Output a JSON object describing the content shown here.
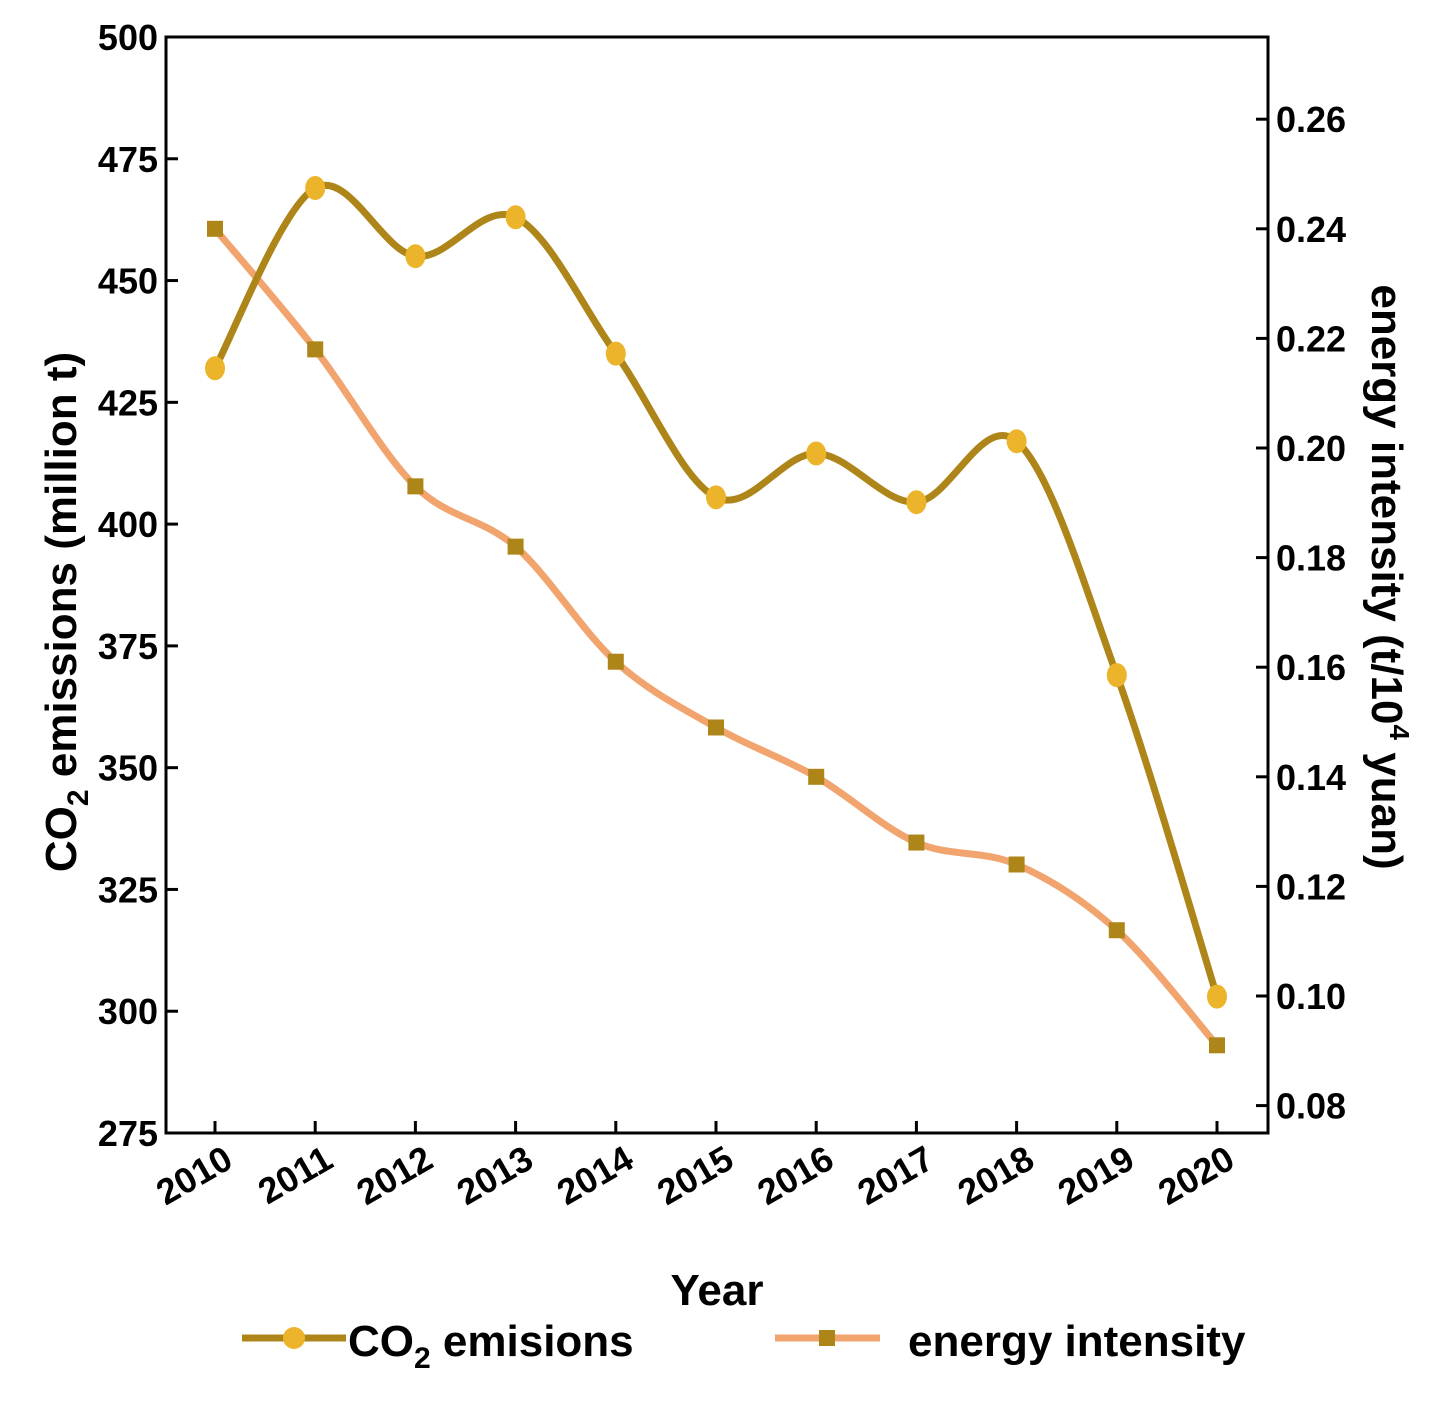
{
  "chart_data": {
    "type": "line",
    "x_label": "Year",
    "categories": [
      "2010",
      "2011",
      "2012",
      "2013",
      "2014",
      "2015",
      "2016",
      "2017",
      "2018",
      "2019",
      "2020"
    ],
    "y_left": {
      "label_prefix": "CO",
      "label_sub": "2",
      "label_suffix": " emissions (million t)",
      "range": [
        275,
        500
      ],
      "ticks": [
        "275",
        "300",
        "325",
        "350",
        "375",
        "400",
        "425",
        "450",
        "475",
        "500"
      ]
    },
    "y_right": {
      "label_prefix": "energy intensity (t/10",
      "label_sup": "4",
      "label_suffix": " yuan)",
      "range": [
        0.075,
        0.275
      ],
      "ticks": [
        "0.08",
        "0.10",
        "0.12",
        "0.14",
        "0.16",
        "0.18",
        "0.20",
        "0.22",
        "0.24",
        "0.26"
      ]
    },
    "series": [
      {
        "name": "CO2 emisions",
        "legend_prefix": "CO",
        "legend_sub": "2",
        "legend_suffix": " emisions",
        "axis": "left",
        "marker": "circle",
        "line_color": "#ae8518",
        "marker_color": "#ecb42a",
        "values": [
          432,
          469,
          455,
          463,
          435,
          405.5,
          414.5,
          404.5,
          417,
          369,
          303
        ]
      },
      {
        "name": "energy intensity",
        "legend_prefix": "energy intensity",
        "axis": "right",
        "marker": "square",
        "line_color": "#f2a46f",
        "marker_color": "#ae8518",
        "values": [
          0.24,
          0.218,
          0.193,
          0.182,
          0.161,
          0.149,
          0.14,
          0.128,
          0.124,
          0.112,
          0.091
        ]
      }
    ]
  }
}
